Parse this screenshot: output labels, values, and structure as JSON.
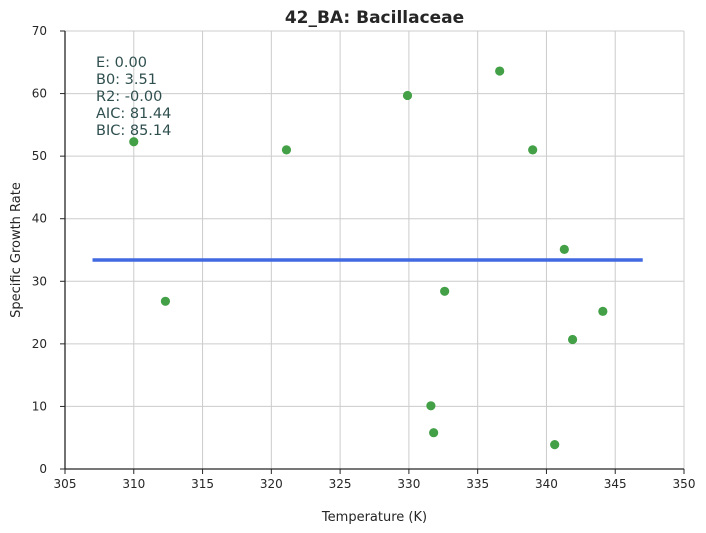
{
  "chart_data": {
    "type": "scatter",
    "title": "42_BA: Bacillaceae",
    "xlabel": "Temperature (K)",
    "ylabel": "Specific Growth Rate",
    "xlim": [
      305,
      350
    ],
    "ylim": [
      0,
      70
    ],
    "xticks": [
      305,
      310,
      315,
      320,
      325,
      330,
      335,
      340,
      345,
      350
    ],
    "yticks": [
      0,
      10,
      20,
      30,
      40,
      50,
      60,
      70
    ],
    "grid": true,
    "colors": {
      "points": "#43a047",
      "fit_line": "#4169e1",
      "annotation": "#2f4f4f"
    },
    "series": [
      {
        "type": "scatter",
        "x": [
          310.0,
          312.3,
          321.1,
          329.9,
          336.6,
          339.0,
          341.3,
          332.6,
          344.1,
          341.9,
          331.6,
          331.8,
          340.6
        ],
        "y": [
          52.3,
          26.8,
          51.0,
          59.7,
          63.6,
          51.0,
          35.1,
          28.4,
          25.2,
          20.7,
          10.1,
          5.8,
          3.9
        ]
      },
      {
        "type": "line",
        "x": [
          307.0,
          347.0
        ],
        "y": [
          33.4,
          33.4
        ]
      }
    ],
    "annotations": [
      "E:  0.00",
      "B0:  3.51",
      "R2:  -0.00",
      "AIC: 81.44",
      "BIC: 85.14"
    ]
  }
}
